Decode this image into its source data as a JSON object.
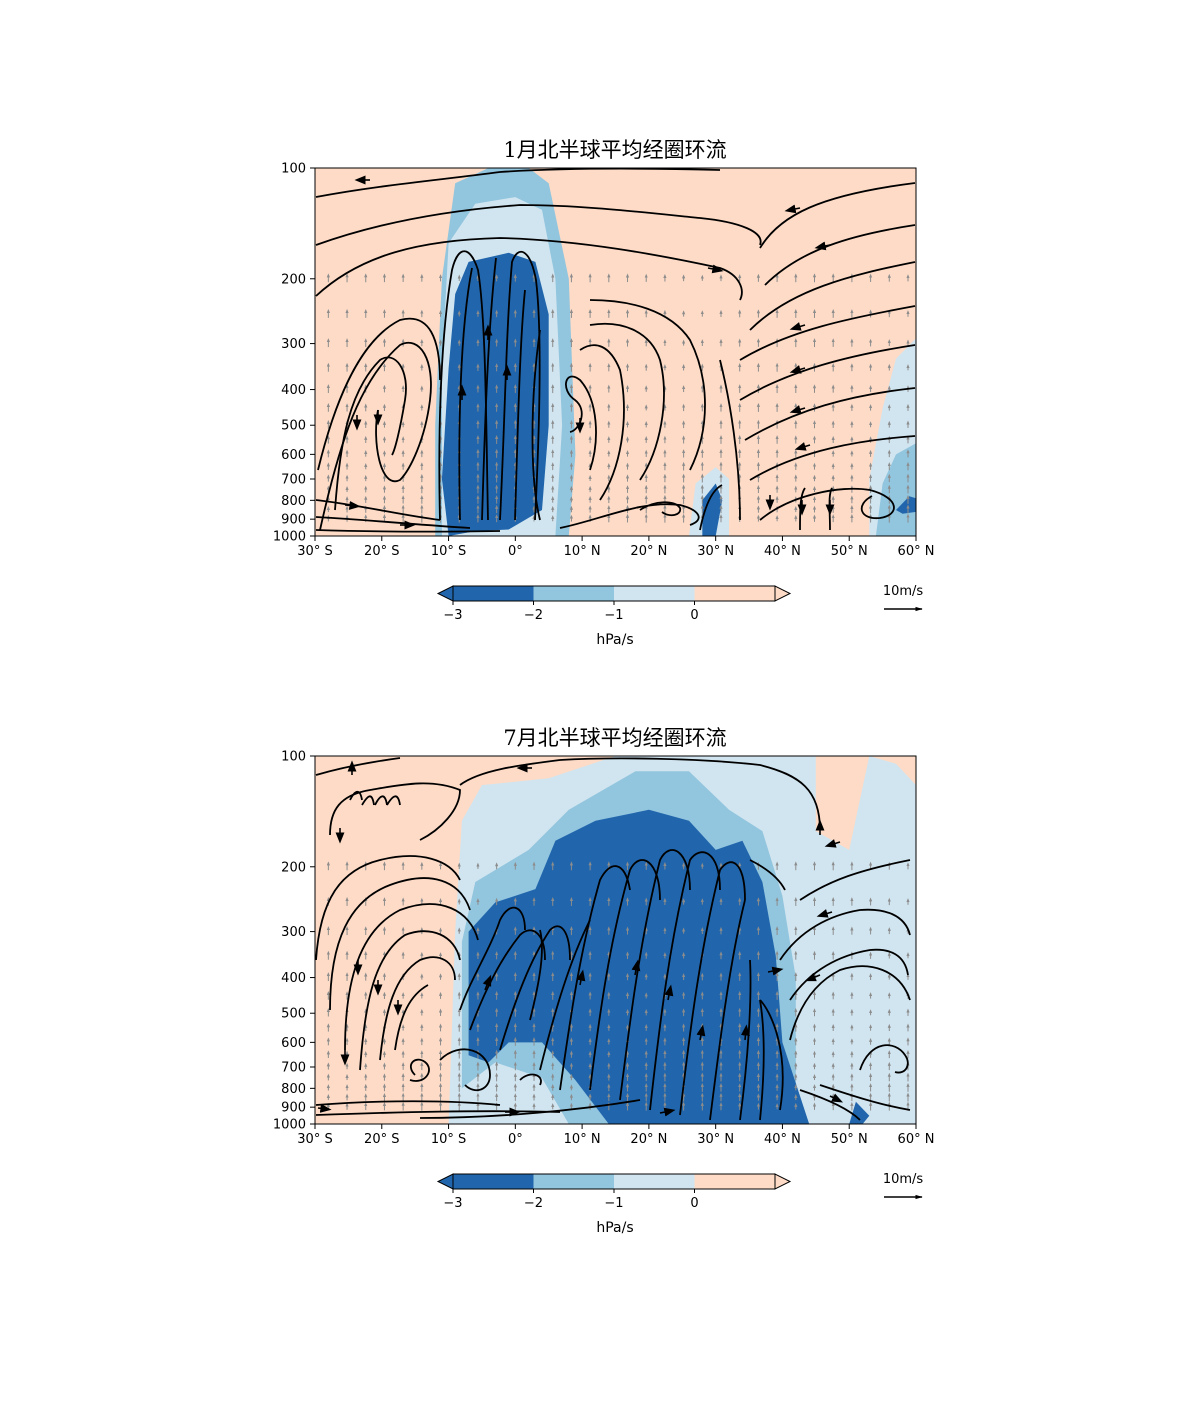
{
  "colors": {
    "le_minus3": "#2166ac",
    "minus3_to_minus2": "#92c5de",
    "minus2_to_minus1": "#d1e5f0",
    "minus1_to_0": "#d1e5f0",
    "ge_0": "#fddbc7",
    "streamline": "#000000",
    "vector": "#8c8c8c"
  },
  "chart_data": [
    {
      "type": "contourf-streamplot",
      "title": "1月北半球平均经圈环流",
      "xlabel": "",
      "ylabel": "",
      "xlim": [
        -30,
        60
      ],
      "ylim": [
        1000,
        100
      ],
      "x_ticks": [
        -30,
        -20,
        -10,
        0,
        10,
        20,
        30,
        40,
        50,
        60
      ],
      "x_tick_labels": [
        "30° S",
        "20° S",
        "10° S",
        "0°",
        "10° N",
        "20° N",
        "30° N",
        "40° N",
        "50° N",
        "60° N"
      ],
      "y_ticks": [
        100,
        200,
        300,
        400,
        500,
        600,
        700,
        800,
        900,
        1000
      ],
      "y_tick_labels": [
        "100",
        "200",
        "300",
        "400",
        "500",
        "600",
        "700",
        "800",
        "900",
        "1000"
      ],
      "colorbar": {
        "levels": [
          -3,
          -2,
          -1,
          0
        ],
        "tick_labels": [
          "−3",
          "−2",
          "−1",
          "0"
        ],
        "label": "hPa/s",
        "extend": "both"
      },
      "reference_vector": {
        "label": "10m/s"
      },
      "omega_regions": [
        {
          "level": "minus3_to_minus2",
          "points": [
            [
              -12,
              1000
            ],
            [
              -12,
              500
            ],
            [
              -11,
              200
            ],
            [
              -9,
              110
            ],
            [
              -4,
              100
            ],
            [
              2,
              100
            ],
            [
              5,
              110
            ],
            [
              8,
              200
            ],
            [
              9,
              600
            ],
            [
              8,
              1000
            ]
          ]
        },
        {
          "level": "minus2_to_minus1",
          "points": [
            [
              -11,
              1000
            ],
            [
              -11,
              350
            ],
            [
              -10,
              160
            ],
            [
              -6,
              125
            ],
            [
              0,
              120
            ],
            [
              4,
              130
            ],
            [
              6,
              200
            ],
            [
              7,
              500
            ],
            [
              6,
              1000
            ]
          ]
        },
        {
          "level": "le_minus3",
          "points": [
            [
              -10,
              1000
            ],
            [
              -11,
              700
            ],
            [
              -10,
              350
            ],
            [
              -9,
              220
            ],
            [
              -7,
              180
            ],
            [
              -1,
              170
            ],
            [
              3,
              180
            ],
            [
              5,
              250
            ],
            [
              5,
              500
            ],
            [
              4,
              850
            ],
            [
              -1,
              960
            ],
            [
              -6,
              970
            ]
          ]
        },
        {
          "level": "minus2_to_minus1",
          "points": [
            [
              26,
              1000
            ],
            [
              27,
              720
            ],
            [
              30,
              650
            ],
            [
              32,
              700
            ],
            [
              32,
              1000
            ]
          ]
        },
        {
          "level": "le_minus3",
          "points": [
            [
              28,
              1000
            ],
            [
              28,
              800
            ],
            [
              30,
              720
            ],
            [
              31,
              800
            ],
            [
              30,
              1000
            ]
          ]
        },
        {
          "level": "minus2_to_minus1",
          "points": [
            [
              53,
              1000
            ],
            [
              53,
              700
            ],
            [
              55,
              450
            ],
            [
              57,
              330
            ],
            [
              60,
              290
            ],
            [
              60,
              1000
            ]
          ]
        },
        {
          "level": "minus3_to_minus2",
          "points": [
            [
              54,
              1000
            ],
            [
              55,
              720
            ],
            [
              57,
              600
            ],
            [
              60,
              560
            ],
            [
              60,
              1000
            ]
          ]
        },
        {
          "level": "le_minus3",
          "points": [
            [
              57,
              850
            ],
            [
              59,
              780
            ],
            [
              60,
              790
            ],
            [
              60,
              860
            ],
            [
              58,
              870
            ]
          ]
        }
      ]
    },
    {
      "type": "contourf-streamplot",
      "title": "7月北半球平均经圈环流",
      "xlabel": "",
      "ylabel": "",
      "xlim": [
        -30,
        60
      ],
      "ylim": [
        1000,
        100
      ],
      "x_ticks": [
        -30,
        -20,
        -10,
        0,
        10,
        20,
        30,
        40,
        50,
        60
      ],
      "x_tick_labels": [
        "30° S",
        "20° S",
        "10° S",
        "0°",
        "10° N",
        "20° N",
        "30° N",
        "40° N",
        "50° N",
        "60° N"
      ],
      "y_ticks": [
        100,
        200,
        300,
        400,
        500,
        600,
        700,
        800,
        900,
        1000
      ],
      "y_tick_labels": [
        "100",
        "200",
        "300",
        "400",
        "500",
        "600",
        "700",
        "800",
        "900",
        "1000"
      ],
      "colorbar": {
        "levels": [
          -3,
          -2,
          -1,
          0
        ],
        "tick_labels": [
          "−3",
          "−2",
          "−1",
          "0"
        ],
        "label": "hPa/s",
        "extend": "both"
      },
      "reference_vector": {
        "label": "10m/s"
      },
      "omega_regions": [
        {
          "level": "minus2_to_minus1",
          "points": [
            [
              -10,
              1000
            ],
            [
              -9,
              300
            ],
            [
              -8,
              150
            ],
            [
              -5,
              120
            ],
            [
              5,
              115
            ],
            [
              15,
              100
            ],
            [
              45,
              100
            ],
            [
              45,
              160
            ],
            [
              50,
              180
            ],
            [
              53,
              100
            ],
            [
              57,
              105
            ],
            [
              60,
              120
            ],
            [
              60,
              1000
            ]
          ]
        },
        {
          "level": "minus3_to_minus2",
          "points": [
            [
              -8,
              800
            ],
            [
              -8,
              320
            ],
            [
              -6,
              220
            ],
            [
              2,
              180
            ],
            [
              8,
              140
            ],
            [
              18,
              110
            ],
            [
              26,
              110
            ],
            [
              32,
              140
            ],
            [
              37,
              160
            ],
            [
              40,
              240
            ],
            [
              42,
              400
            ],
            [
              42,
              1000
            ],
            [
              8,
              1000
            ],
            [
              4,
              750
            ],
            [
              -3,
              680
            ]
          ]
        },
        {
          "level": "le_minus3",
          "points": [
            [
              -7,
              650
            ],
            [
              -7,
              300
            ],
            [
              -3,
              250
            ],
            [
              3,
              230
            ],
            [
              6,
              170
            ],
            [
              12,
              150
            ],
            [
              20,
              140
            ],
            [
              26,
              150
            ],
            [
              30,
              180
            ],
            [
              34,
              170
            ],
            [
              37,
              220
            ],
            [
              39,
              350
            ],
            [
              40,
              600
            ],
            [
              44,
              1000
            ],
            [
              14,
              1000
            ],
            [
              9,
              760
            ],
            [
              4,
              600
            ],
            [
              -1,
              600
            ],
            [
              -4,
              680
            ]
          ]
        },
        {
          "level": "minus2_to_minus1",
          "points": [
            [
              49,
              1000
            ],
            [
              50,
              800
            ],
            [
              52,
              820
            ],
            [
              55,
              900
            ],
            [
              56,
              1000
            ]
          ]
        },
        {
          "level": "le_minus3",
          "points": [
            [
              50,
              1000
            ],
            [
              51,
              870
            ],
            [
              53,
              950
            ],
            [
              52,
              1000
            ]
          ]
        }
      ]
    }
  ]
}
